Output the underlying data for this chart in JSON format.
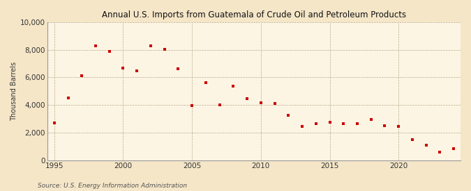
{
  "title": "Annual U.S. Imports from Guatemala of Crude Oil and Petroleum Products",
  "ylabel": "Thousand Barrels",
  "source": "Source: U.S. Energy Information Administration",
  "background_color": "#f5e6c8",
  "plot_background_color": "#fdf5e4",
  "marker_color": "#cc0000",
  "marker": "s",
  "marker_size": 3.5,
  "xlim": [
    1994.5,
    2024.5
  ],
  "ylim": [
    0,
    10000
  ],
  "yticks": [
    0,
    2000,
    4000,
    6000,
    8000,
    10000
  ],
  "xticks": [
    1995,
    2000,
    2005,
    2010,
    2015,
    2020
  ],
  "years": [
    1995,
    1996,
    1997,
    1998,
    1999,
    2000,
    2001,
    2002,
    2003,
    2004,
    2005,
    2006,
    2007,
    2008,
    2009,
    2010,
    2011,
    2012,
    2013,
    2014,
    2015,
    2016,
    2017,
    2018,
    2019,
    2020,
    2021,
    2022,
    2023,
    2024
  ],
  "values": [
    2700,
    4500,
    6100,
    8300,
    7900,
    6700,
    6500,
    8300,
    8050,
    6650,
    3950,
    5600,
    4000,
    5350,
    4450,
    4150,
    4100,
    3250,
    2450,
    2650,
    2750,
    2650,
    2650,
    2950,
    2500,
    2450,
    1500,
    1100,
    600,
    850
  ]
}
